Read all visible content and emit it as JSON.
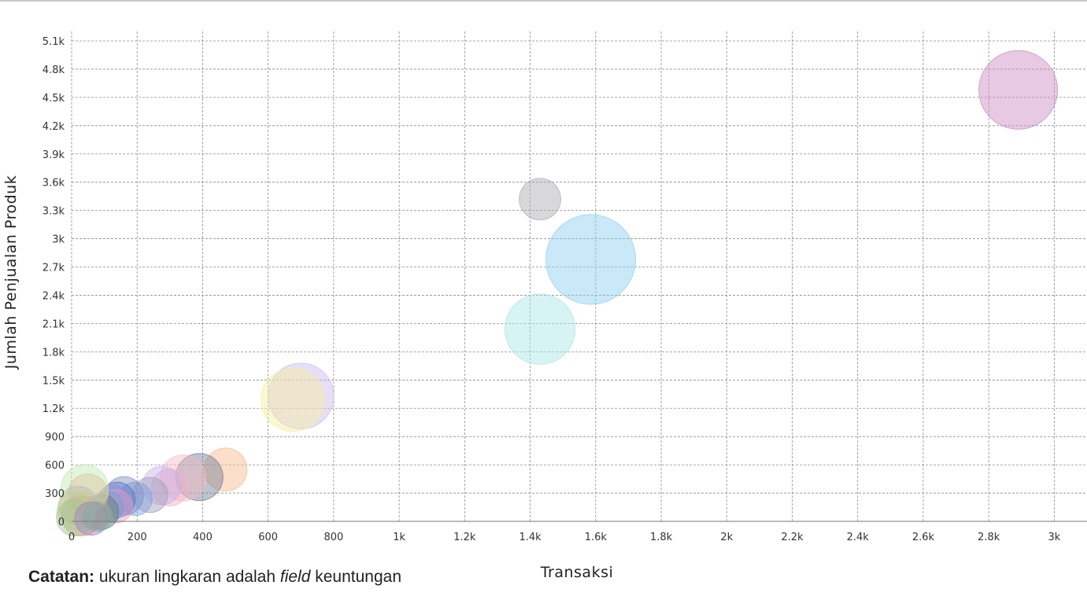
{
  "chart_data": {
    "type": "scatter",
    "variant": "bubble",
    "xlabel": "Transaksi",
    "ylabel": "Jumlah Penjualan Produk",
    "xlim": [
      0,
      3100
    ],
    "ylim": [
      0,
      5200
    ],
    "x_ticks": [
      0,
      200,
      400,
      600,
      800,
      1000,
      1200,
      1400,
      1600,
      1800,
      2000,
      2200,
      2400,
      2600,
      2800,
      3000
    ],
    "x_tick_labels": [
      "0",
      "200",
      "400",
      "600",
      "800",
      "1k",
      "1.2k",
      "1.4k",
      "1.6k",
      "1.8k",
      "2k",
      "2.2k",
      "2.4k",
      "2.6k",
      "2.8k",
      "3k"
    ],
    "y_ticks": [
      0,
      300,
      600,
      900,
      1200,
      1500,
      1800,
      2100,
      2400,
      2700,
      3000,
      3300,
      3600,
      3900,
      4200,
      4500,
      4800,
      5100
    ],
    "y_tick_labels": [
      "0",
      "300",
      "600",
      "900",
      "1.2k",
      "1.5k",
      "1.8k",
      "2.1k",
      "2.4k",
      "2.7k",
      "3k",
      "3.3k",
      "3.6k",
      "3.9k",
      "4.2k",
      "4.5k",
      "4.8k",
      "5.1k"
    ],
    "grid": true,
    "legend": "none",
    "bubble_size_field": "keuntungan",
    "points": [
      {
        "x": 2890,
        "y": 4580,
        "size": 100,
        "color": "#c987c0"
      },
      {
        "x": 1585,
        "y": 2780,
        "size": 130,
        "color": "#87cef0"
      },
      {
        "x": 1430,
        "y": 2040,
        "size": 80,
        "color": "#a8e4e4"
      },
      {
        "x": 1430,
        "y": 3420,
        "size": 28,
        "color": "#a9a9b0"
      },
      {
        "x": 700,
        "y": 1330,
        "size": 70,
        "color": "#c9b8ec"
      },
      {
        "x": 675,
        "y": 1290,
        "size": 65,
        "color": "#f5ee9e"
      },
      {
        "x": 470,
        "y": 550,
        "size": 30,
        "color": "#f6b98a"
      },
      {
        "x": 390,
        "y": 470,
        "size": 36,
        "color": "#6f7c94"
      },
      {
        "x": 340,
        "y": 460,
        "size": 34,
        "color": "#f5b8c0"
      },
      {
        "x": 300,
        "y": 360,
        "size": 22,
        "color": "#f0b0c8"
      },
      {
        "x": 275,
        "y": 380,
        "size": 24,
        "color": "#c8b0ec"
      },
      {
        "x": 240,
        "y": 280,
        "size": 20,
        "color": "#a0a0b8"
      },
      {
        "x": 195,
        "y": 240,
        "size": 18,
        "color": "#7fa0e0"
      },
      {
        "x": 160,
        "y": 270,
        "size": 24,
        "color": "#7a8fc0"
      },
      {
        "x": 140,
        "y": 230,
        "size": 20,
        "color": "#6070c8"
      },
      {
        "x": 125,
        "y": 200,
        "size": 18,
        "color": "#9090e0"
      },
      {
        "x": 135,
        "y": 160,
        "size": 18,
        "color": "#e0a0c0"
      },
      {
        "x": 110,
        "y": 150,
        "size": 16,
        "color": "#70a0d0"
      },
      {
        "x": 90,
        "y": 100,
        "size": 20,
        "color": "#608070"
      },
      {
        "x": 70,
        "y": 80,
        "size": 16,
        "color": "#c0a070"
      },
      {
        "x": 50,
        "y": 290,
        "size": 26,
        "color": "#f0a890"
      },
      {
        "x": 40,
        "y": 350,
        "size": 36,
        "color": "#c0e8b0"
      },
      {
        "x": 30,
        "y": 60,
        "size": 26,
        "color": "#d09080"
      },
      {
        "x": 20,
        "y": 170,
        "size": 24,
        "color": "#b8b8b8"
      },
      {
        "x": 15,
        "y": 120,
        "size": 24,
        "color": "#c8d088"
      },
      {
        "x": 10,
        "y": 40,
        "size": 22,
        "color": "#a0c890"
      },
      {
        "x": 60,
        "y": 30,
        "size": 18,
        "color": "#a080c0"
      },
      {
        "x": 80,
        "y": 50,
        "size": 14,
        "color": "#80b0a0"
      }
    ]
  },
  "note": {
    "bold": "Catatan:",
    "text1": " ukuran lingkaran adalah ",
    "italic": "field",
    "text2": " keuntungan"
  }
}
